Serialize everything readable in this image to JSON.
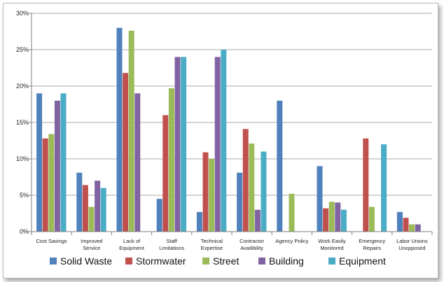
{
  "chart_data": {
    "type": "bar",
    "title": "",
    "xlabel": "",
    "ylabel": "",
    "ylim": [
      0,
      30
    ],
    "y_ticks": [
      0,
      5,
      10,
      15,
      20,
      25,
      30
    ],
    "y_tick_labels": [
      "0%",
      "5%",
      "10%",
      "15%",
      "20%",
      "25%",
      "30%"
    ],
    "legend_position": "bottom",
    "categories": [
      [
        "Cost Savings"
      ],
      [
        "Improved",
        "Service"
      ],
      [
        "Lack of",
        "Equipment"
      ],
      [
        "Staff",
        "Limitations"
      ],
      [
        "Technical",
        "Expertise"
      ],
      [
        "Contractor",
        "Availibility"
      ],
      [
        "Agency Policy"
      ],
      [
        "Work Easily",
        "Monitored"
      ],
      [
        "Emergency",
        "Repairs"
      ],
      [
        "Labor Unions",
        "Unopposed"
      ]
    ],
    "series": [
      {
        "name": "Solid Waste",
        "color": "#4f81bd",
        "values": [
          19,
          8.1,
          28,
          4.5,
          2.7,
          8.1,
          18,
          9,
          null,
          2.7
        ]
      },
      {
        "name": "Stormwater",
        "color": "#c0504d",
        "values": [
          12.8,
          6.4,
          21.8,
          16,
          10.9,
          14.1,
          null,
          3.2,
          12.8,
          1.9
        ]
      },
      {
        "name": "Street",
        "color": "#9bbb59",
        "values": [
          13.4,
          3.4,
          27.6,
          19.7,
          10,
          12.1,
          5.2,
          4.1,
          3.4,
          1
        ]
      },
      {
        "name": "Building",
        "color": "#8064a2",
        "values": [
          18,
          7,
          19,
          24,
          24,
          3,
          null,
          4,
          null,
          1
        ]
      },
      {
        "name": "Equipment",
        "color": "#4bacc6",
        "values": [
          19,
          6,
          null,
          24,
          25,
          11,
          null,
          3,
          12,
          null
        ]
      }
    ]
  }
}
